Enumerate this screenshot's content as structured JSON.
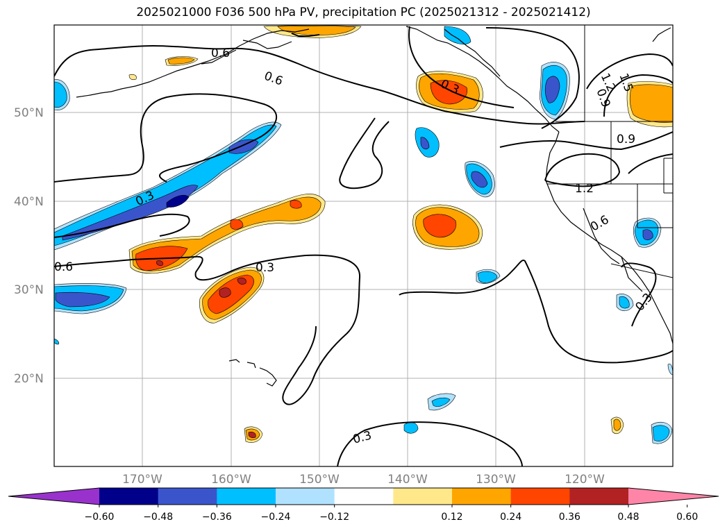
{
  "title": "2025021000 F036 500 hPa PV, precipitation PC (2025021312 - 2025021412)",
  "lat_labels": [
    "50°N",
    "40°N",
    "30°N",
    "20°N"
  ],
  "lon_labels": [
    "170°W",
    "160°W",
    "150°W",
    "140°W",
    "130°W",
    "120°W"
  ],
  "contour_labels": [
    "0.6",
    "0.6",
    "0.3",
    "0.6",
    "0.3",
    "0.3",
    "1.2",
    "0.6",
    "0.9",
    "1.2",
    "1.5",
    "0.9",
    "0.3",
    "0.3"
  ],
  "colorbar": {
    "ticks": [
      "−0.60",
      "−0.48",
      "−0.36",
      "−0.24",
      "−0.12",
      "0.12",
      "0.24",
      "0.36",
      "0.48",
      "0.60"
    ],
    "colors": [
      "#9932cc",
      "#00008b",
      "#3a55cc",
      "#00bfff",
      "#b0e2ff",
      "#ffffff",
      "#ffe88a",
      "#ffa500",
      "#ff4500",
      "#b22222",
      "#ff85a8"
    ]
  },
  "precip_colors": {
    "neg_light": "#b0e2ff",
    "neg_mid": "#00bfff",
    "neg_dark": "#3a55cc",
    "neg_darkest": "#00008b",
    "pos_light": "#ffe88a",
    "pos_mid": "#ffa500",
    "pos_dark": "#ff4500",
    "pos_darkest": "#b22222"
  }
}
